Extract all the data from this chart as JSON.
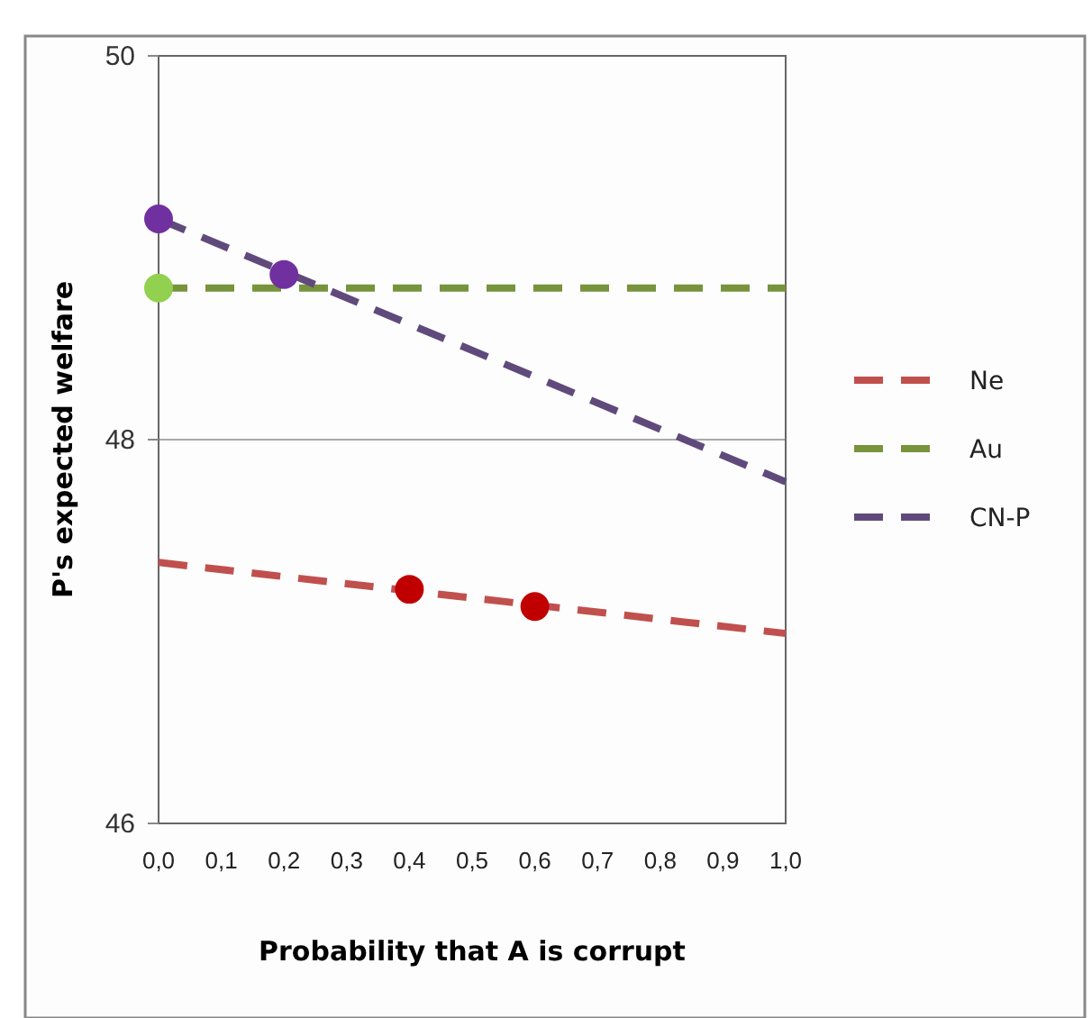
{
  "chart_data": {
    "type": "line",
    "xlabel": "Probability that A is corrupt",
    "ylabel": "P's expected welfare",
    "xlim": [
      0,
      1
    ],
    "ylim": [
      46,
      50
    ],
    "yticks": [
      46,
      48,
      50
    ],
    "xticks": [
      {
        "value": 0,
        "label": "0,0"
      },
      {
        "value": 0.1,
        "label": "0,1"
      },
      {
        "value": 0.2,
        "label": "0,2"
      },
      {
        "value": 0.3,
        "label": "0,3"
      },
      {
        "value": 0.4,
        "label": "0,4"
      },
      {
        "value": 0.5,
        "label": "0,5"
      },
      {
        "value": 0.6,
        "label": "0,6"
      },
      {
        "value": 0.7,
        "label": "0,7"
      },
      {
        "value": 0.8,
        "label": "0,8"
      },
      {
        "value": 0.9,
        "label": "0,9"
      },
      {
        "value": 1,
        "label": "1,0"
      }
    ],
    "grid": "y",
    "legend": "right",
    "line_style": "dashed",
    "marker": "none",
    "series": [
      {
        "name": "Ne",
        "color": "#c0504d",
        "x": [
          0,
          1
        ],
        "values": [
          47.36,
          46.99
        ]
      },
      {
        "name": "Au",
        "color": "#77933c",
        "x": [
          0,
          1
        ],
        "values": [
          48.79,
          48.79
        ]
      },
      {
        "name": "CN-P",
        "color": "#604a7b",
        "x": [
          0,
          1
        ],
        "values": [
          49.15,
          47.78
        ]
      },
      {
        "type": "scatter",
        "marker": "circle",
        "color": "#c00000",
        "x": [
          0.4,
          0.6
        ],
        "values": [
          47.22,
          47.13
        ]
      },
      {
        "type": "scatter",
        "marker": "circle",
        "color": "#92d050",
        "x": [
          0
        ],
        "values": [
          48.79
        ]
      },
      {
        "type": "scatter",
        "marker": "circle",
        "color": "#7030a0",
        "x": [
          0,
          0.2
        ],
        "values": [
          49.15,
          48.86
        ]
      }
    ]
  }
}
